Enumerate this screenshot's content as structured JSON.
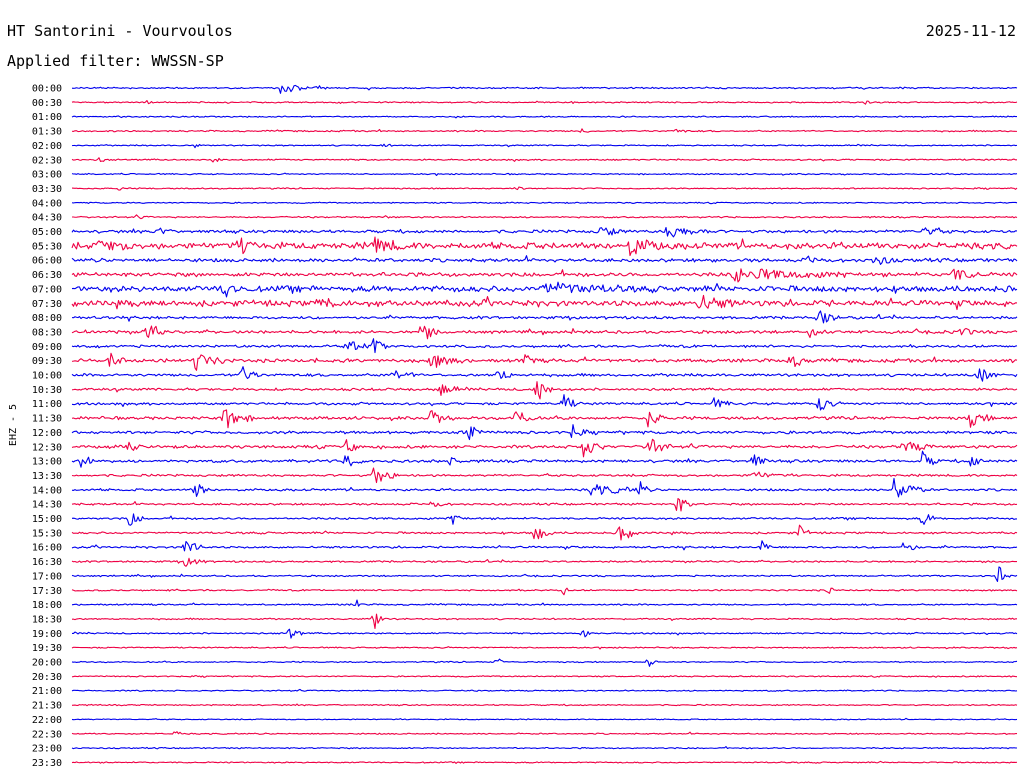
{
  "header": {
    "title": "HT Santorini - Vourvoulos",
    "date": "2025-11-12",
    "filter": "Applied filter: WWSSN-SP"
  },
  "chart_data": {
    "type": "line",
    "title": "HT Santorini - Vourvoulos",
    "subtitle": "Applied filter: WWSSN-SP",
    "ylabel": "EHZ - 5",
    "colors": [
      "#0000ee",
      "#ee0044"
    ],
    "grid": false,
    "legend": "none",
    "rows": [
      {
        "label": "00:00",
        "noise": 0.6,
        "events": [
          [
            0.22,
            10,
            1.0
          ],
          [
            0.26,
            4,
            0.3
          ]
        ]
      },
      {
        "label": "00:30",
        "noise": 0.5,
        "events": [
          [
            0.08,
            2,
            0.3
          ],
          [
            0.53,
            2,
            0.3
          ],
          [
            0.84,
            2,
            0.3
          ]
        ]
      },
      {
        "label": "01:00",
        "noise": 0.5,
        "events": []
      },
      {
        "label": "01:30",
        "noise": 0.6,
        "events": [
          [
            0.54,
            3,
            0.3
          ],
          [
            0.64,
            4,
            0.4
          ]
        ]
      },
      {
        "label": "02:00",
        "noise": 0.5,
        "events": [
          [
            0.13,
            2,
            0.3
          ],
          [
            0.33,
            3,
            0.3
          ]
        ]
      },
      {
        "label": "02:30",
        "noise": 0.6,
        "events": [
          [
            0.03,
            3,
            0.4
          ],
          [
            0.15,
            4,
            0.3
          ]
        ]
      },
      {
        "label": "03:00",
        "noise": 0.5,
        "events": []
      },
      {
        "label": "03:30",
        "noise": 0.5,
        "events": [
          [
            0.05,
            2,
            0.3
          ],
          [
            0.47,
            3,
            0.3
          ]
        ]
      },
      {
        "label": "04:00",
        "noise": 0.5,
        "events": []
      },
      {
        "label": "04:30",
        "noise": 0.6,
        "events": [
          [
            0.07,
            3,
            0.3
          ],
          [
            0.33,
            3,
            0.3
          ]
        ]
      },
      {
        "label": "05:00",
        "noise": 1.2,
        "events": [
          [
            0.09,
            5,
            0.7
          ],
          [
            0.56,
            7,
            1.0
          ],
          [
            0.63,
            15,
            0.9
          ],
          [
            0.9,
            10,
            0.6
          ]
        ]
      },
      {
        "label": "05:30",
        "noise": 2.6,
        "events": [
          [
            0.03,
            12,
            0.8
          ],
          [
            0.18,
            8,
            1.0
          ],
          [
            0.32,
            12,
            1.0
          ],
          [
            0.59,
            12,
            1.2
          ]
        ]
      },
      {
        "label": "06:00",
        "noise": 1.4,
        "events": [
          [
            0.85,
            7,
            0.9
          ],
          [
            0.78,
            7,
            0.5
          ]
        ]
      },
      {
        "label": "06:30",
        "noise": 1.6,
        "events": [
          [
            0.7,
            40,
            0.9
          ],
          [
            0.93,
            12,
            0.9
          ]
        ]
      },
      {
        "label": "07:00",
        "noise": 2.4,
        "events": [
          [
            0.16,
            6,
            1.6
          ],
          [
            0.5,
            30,
            0.8
          ]
        ]
      },
      {
        "label": "07:30",
        "noise": 2.4,
        "events": [
          [
            0.66,
            15,
            1.1
          ],
          [
            0.26,
            10,
            0.6
          ]
        ]
      },
      {
        "label": "08:00",
        "noise": 1.1,
        "events": [
          [
            0.79,
            8,
            1.0
          ]
        ]
      },
      {
        "label": "08:30",
        "noise": 1.2,
        "events": [
          [
            0.08,
            6,
            1.7
          ],
          [
            0.37,
            6,
            1.5
          ],
          [
            0.78,
            6,
            1.0
          ],
          [
            0.94,
            5,
            0.8
          ]
        ]
      },
      {
        "label": "09:00",
        "noise": 1.0,
        "events": [
          [
            0.29,
            10,
            0.8
          ],
          [
            0.32,
            4,
            1.4
          ]
        ]
      },
      {
        "label": "09:30",
        "noise": 1.4,
        "events": [
          [
            0.04,
            6,
            1.2
          ],
          [
            0.13,
            10,
            1.4
          ],
          [
            0.38,
            12,
            1.0
          ],
          [
            0.48,
            4,
            0.9
          ],
          [
            0.76,
            8,
            1.0
          ]
        ]
      },
      {
        "label": "10:00",
        "noise": 1.1,
        "events": [
          [
            0.18,
            6,
            1.3
          ],
          [
            0.34,
            8,
            0.8
          ],
          [
            0.45,
            5,
            1.4
          ],
          [
            0.96,
            6,
            1.5
          ]
        ]
      },
      {
        "label": "10:30",
        "noise": 1.0,
        "events": [
          [
            0.39,
            8,
            0.8
          ],
          [
            0.49,
            6,
            2.3
          ]
        ]
      },
      {
        "label": "11:00",
        "noise": 1.0,
        "events": [
          [
            0.52,
            6,
            1.3
          ],
          [
            0.68,
            6,
            0.8
          ],
          [
            0.79,
            6,
            1.2
          ]
        ]
      },
      {
        "label": "11:30",
        "noise": 1.2,
        "events": [
          [
            0.16,
            10,
            1.7
          ],
          [
            0.38,
            6,
            1.2
          ],
          [
            0.47,
            6,
            1.4
          ],
          [
            0.61,
            6,
            1.3
          ],
          [
            0.95,
            8,
            1.2
          ]
        ]
      },
      {
        "label": "12:00",
        "noise": 1.2,
        "events": [
          [
            0.42,
            5,
            1.6
          ],
          [
            0.53,
            5,
            1.0
          ]
        ]
      },
      {
        "label": "12:30",
        "noise": 1.2,
        "events": [
          [
            0.06,
            6,
            0.8
          ],
          [
            0.29,
            5,
            1.0
          ],
          [
            0.54,
            8,
            1.5
          ],
          [
            0.61,
            8,
            1.4
          ],
          [
            0.88,
            10,
            1.0
          ]
        ]
      },
      {
        "label": "13:00",
        "noise": 1.1,
        "events": [
          [
            0.01,
            4,
            2.2
          ],
          [
            0.29,
            6,
            1.1
          ],
          [
            0.4,
            4,
            0.8
          ],
          [
            0.72,
            5,
            1.3
          ],
          [
            0.9,
            6,
            1.3
          ],
          [
            0.95,
            5,
            1.0
          ]
        ]
      },
      {
        "label": "13:30",
        "noise": 0.9,
        "events": [
          [
            0.32,
            8,
            1.4
          ],
          [
            0.72,
            10,
            0.6
          ]
        ]
      },
      {
        "label": "14:00",
        "noise": 0.9,
        "events": [
          [
            0.13,
            5,
            1.4
          ],
          [
            0.55,
            20,
            0.8
          ],
          [
            0.6,
            4,
            1.2
          ],
          [
            0.87,
            10,
            1.8
          ]
        ]
      },
      {
        "label": "14:30",
        "noise": 0.8,
        "events": [
          [
            0.64,
            5,
            1.6
          ],
          [
            0.38,
            6,
            0.5
          ]
        ]
      },
      {
        "label": "15:00",
        "noise": 0.8,
        "events": [
          [
            0.06,
            5,
            1.3
          ],
          [
            0.4,
            6,
            1.0
          ],
          [
            0.9,
            5,
            1.1
          ]
        ]
      },
      {
        "label": "15:30",
        "noise": 0.8,
        "events": [
          [
            0.49,
            6,
            1.4
          ],
          [
            0.58,
            6,
            1.6
          ],
          [
            0.77,
            4,
            1.1
          ]
        ]
      },
      {
        "label": "16:00",
        "noise": 0.8,
        "events": [
          [
            0.12,
            6,
            1.6
          ],
          [
            0.73,
            4,
            0.9
          ],
          [
            0.88,
            6,
            0.8
          ]
        ]
      },
      {
        "label": "16:30",
        "noise": 0.7,
        "events": [
          [
            0.12,
            8,
            0.7
          ]
        ]
      },
      {
        "label": "17:00",
        "noise": 0.6,
        "events": [
          [
            0.98,
            4,
            1.7
          ]
        ]
      },
      {
        "label": "17:30",
        "noise": 0.6,
        "events": [
          [
            0.52,
            2,
            0.9
          ],
          [
            0.8,
            3,
            0.6
          ]
        ]
      },
      {
        "label": "18:00",
        "noise": 0.6,
        "events": [
          [
            0.3,
            3,
            0.9
          ]
        ]
      },
      {
        "label": "18:30",
        "noise": 0.6,
        "events": [
          [
            0.32,
            4,
            1.7
          ]
        ]
      },
      {
        "label": "19:00",
        "noise": 0.6,
        "events": [
          [
            0.23,
            5,
            0.9
          ],
          [
            0.54,
            3,
            0.9
          ]
        ]
      },
      {
        "label": "19:30",
        "noise": 0.5,
        "events": []
      },
      {
        "label": "20:00",
        "noise": 0.5,
        "events": [
          [
            0.45,
            2,
            0.9
          ],
          [
            0.61,
            3,
            0.9
          ]
        ]
      },
      {
        "label": "20:30",
        "noise": 0.5,
        "events": []
      },
      {
        "label": "21:00",
        "noise": 0.5,
        "events": []
      },
      {
        "label": "21:30",
        "noise": 0.5,
        "events": []
      },
      {
        "label": "22:00",
        "noise": 0.4,
        "events": []
      },
      {
        "label": "22:30",
        "noise": 0.5,
        "events": [
          [
            0.11,
            2,
            0.6
          ]
        ]
      },
      {
        "label": "23:00",
        "noise": 0.5,
        "events": []
      },
      {
        "label": "23:30",
        "noise": 0.5,
        "events": []
      }
    ]
  }
}
